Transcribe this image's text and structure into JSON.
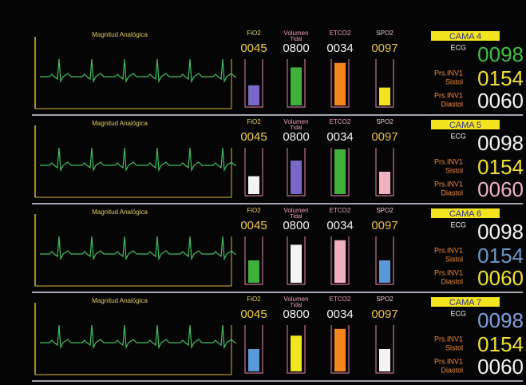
{
  "panels": [
    {
      "bed": "CAMA 4",
      "waveform_label": "Magnitud Analógica",
      "gauges": [
        {
          "label": "FiO2",
          "value": "0045",
          "color": "#7a68c8"
        },
        {
          "label": [
            "Volumen",
            "Tidal"
          ],
          "value": "0800",
          "color": "#3fb03a"
        },
        {
          "label": "ETCO2",
          "value": "0034",
          "color": "#f2861c"
        },
        {
          "label": "SPO2",
          "value": "0097",
          "color": "#f2e41e"
        }
      ],
      "readings": [
        {
          "label": [
            "ECG"
          ],
          "value": "0098",
          "color": "#3fc048"
        },
        {
          "label": [
            "Prs.INV1",
            "Sistol"
          ],
          "value": "0154",
          "color": "#f2e030"
        },
        {
          "label": [
            "Prs.INV1",
            "Diastol"
          ],
          "value": "0060",
          "color": "#f4f4f4"
        }
      ]
    },
    {
      "bed": "CAMA 5",
      "waveform_label": "Magnitud Analógica",
      "gauges": [
        {
          "label": "FiO2",
          "value": "0045",
          "color": "#f4f4f4"
        },
        {
          "label": [
            "Volumen",
            "Tidal"
          ],
          "value": "0800",
          "color": "#7a68c8"
        },
        {
          "label": "ETCO2",
          "value": "0034",
          "color": "#3fb03a"
        },
        {
          "label": "SPO2",
          "value": "0097",
          "color": "#f0b0c0"
        }
      ],
      "readings": [
        {
          "label": [
            "ECG"
          ],
          "value": "0098",
          "color": "#f4f4f4"
        },
        {
          "label": [
            "Prs.INV1",
            "Sistol"
          ],
          "value": "0154",
          "color": "#f2e030"
        },
        {
          "label": [
            "Prs.INV1",
            "Diastol"
          ],
          "value": "0060",
          "color": "#f0b0c8"
        }
      ]
    },
    {
      "bed": "CAMA 6",
      "waveform_label": "Magnitud Analógica",
      "gauges": [
        {
          "label": "FiO2",
          "value": "0045",
          "color": "#3fb03a"
        },
        {
          "label": [
            "Volumen",
            "Tidal"
          ],
          "value": "0800",
          "color": "#f4f4f4"
        },
        {
          "label": "ETCO2",
          "value": "0034",
          "color": "#f0b0c0"
        },
        {
          "label": "SPO2",
          "value": "0097",
          "color": "#5a98d8"
        }
      ],
      "readings": [
        {
          "label": [
            "ECG"
          ],
          "value": "0098",
          "color": "#f4f4f4"
        },
        {
          "label": [
            "Prs.INV1",
            "Sistol"
          ],
          "value": "0154",
          "color": "#6a98c8"
        },
        {
          "label": [
            "Prs.INV1",
            "Diastol"
          ],
          "value": "0060",
          "color": "#f2e030"
        }
      ]
    },
    {
      "bed": "CAMA 7",
      "waveform_label": "Magnitud Analógica",
      "gauges": [
        {
          "label": "FiO2",
          "value": "0045",
          "color": "#5a98d8"
        },
        {
          "label": [
            "Volumen",
            "Tidal"
          ],
          "value": "0800",
          "color": "#f2e41e"
        },
        {
          "label": "ETCO2",
          "value": "0034",
          "color": "#f2861c"
        },
        {
          "label": "SPO2",
          "value": "0097",
          "color": "#f4f4f4"
        }
      ],
      "readings": [
        {
          "label": [
            "ECG"
          ],
          "value": "0098",
          "color": "#7aa0e0"
        },
        {
          "label": [
            "Prs.INV1",
            "Sistol"
          ],
          "value": "0154",
          "color": "#f2e030"
        },
        {
          "label": [
            "Prs.INV1",
            "Diastol"
          ],
          "value": "0060",
          "color": "#f4f4f4"
        }
      ]
    }
  ]
}
